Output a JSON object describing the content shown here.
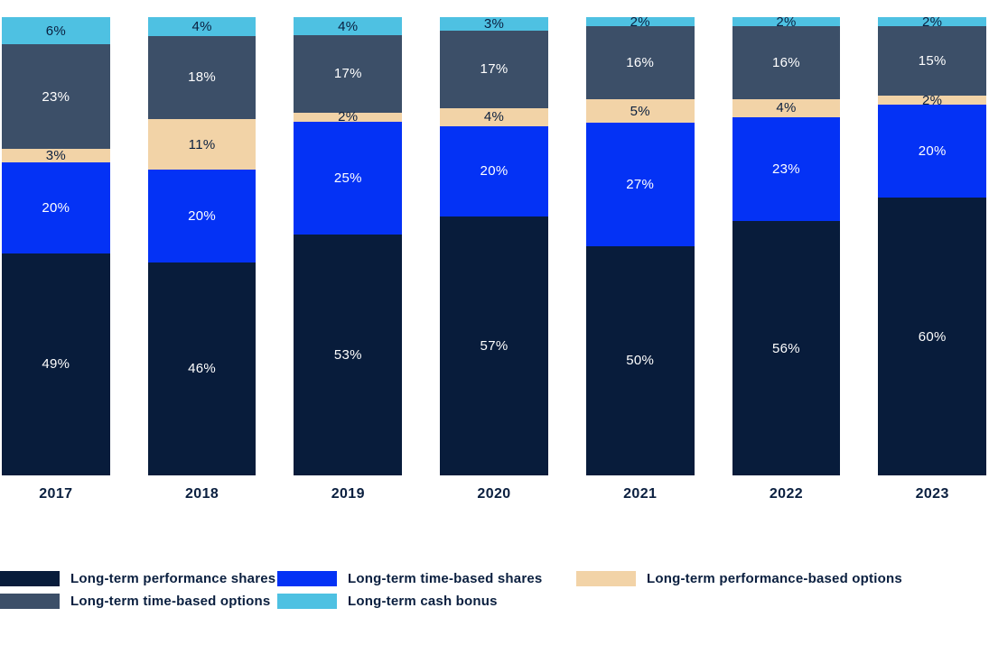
{
  "colors": {
    "navy": "#081c3b",
    "bright_blue": "#0432f5",
    "tan": "#f2d3a7",
    "slate": "#3c4f68",
    "cyan": "#4ec1e2",
    "text_dark": "#0a1f3f",
    "text_light": "#ffffff",
    "background": "#ffffff"
  },
  "chart_data": {
    "type": "bar",
    "stacked": true,
    "orientation": "vertical",
    "title": "",
    "xlabel": "",
    "ylabel": "",
    "ylim": [
      0,
      100
    ],
    "grid": false,
    "y_axis_visible": false,
    "value_suffix": "%",
    "bar_value_labels_shown": true,
    "legend_position": "bottom",
    "categories": [
      "2017",
      "2018",
      "2019",
      "2020",
      "2021",
      "2022",
      "2023"
    ],
    "series": [
      {
        "name": "Long-term performance shares",
        "color": "#081c3b",
        "label_color": "#ffffff",
        "values": [
          49,
          46,
          53,
          57,
          50,
          56,
          60
        ]
      },
      {
        "name": "Long-term time-based shares",
        "color": "#0432f5",
        "label_color": "#ffffff",
        "values": [
          20,
          20,
          25,
          20,
          27,
          23,
          20
        ]
      },
      {
        "name": "Long-term performance-based options",
        "color": "#f2d3a7",
        "label_color": "#0a1f3f",
        "values": [
          3,
          11,
          2,
          4,
          5,
          4,
          2
        ]
      },
      {
        "name": "Long-term time-based options",
        "color": "#3c4f68",
        "label_color": "#ffffff",
        "values": [
          23,
          18,
          17,
          17,
          16,
          16,
          15
        ]
      },
      {
        "name": "Long-term cash bonus",
        "color": "#4ec1e2",
        "label_color": "#0a1f3f",
        "values": [
          6,
          4,
          4,
          3,
          2,
          2,
          2
        ]
      }
    ],
    "stack_order_top_to_bottom": [
      4,
      3,
      2,
      1,
      0
    ]
  },
  "legend": {
    "columns": [
      [
        {
          "label": "Long-term performance shares",
          "color": "#081c3b"
        },
        {
          "label": "Long-term time-based options",
          "color": "#3c4f68"
        }
      ],
      [
        {
          "label": "Long-term time-based shares",
          "color": "#0432f5"
        },
        {
          "label": "Long-term cash bonus",
          "color": "#4ec1e2"
        }
      ],
      [
        {
          "label": "Long-term performance-based options",
          "color": "#f2d3a7"
        }
      ]
    ]
  }
}
